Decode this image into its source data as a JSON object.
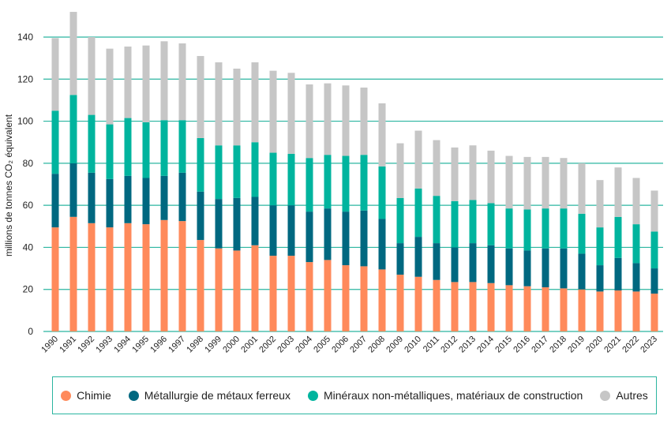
{
  "chart_data": {
    "type": "bar",
    "stacked": true,
    "ylabel": "millions de tonnes CO₂ équivalent",
    "ylim": [
      0,
      150
    ],
    "yticks": [
      0,
      20,
      40,
      60,
      80,
      100,
      120,
      140
    ],
    "grid": true,
    "legend_position": "bottom",
    "categories": [
      "1990",
      "1991",
      "1992",
      "1993",
      "1994",
      "1995",
      "1996",
      "1997",
      "1998",
      "1999",
      "2000",
      "2001",
      "2002",
      "2003",
      "2004",
      "2005",
      "2006",
      "2007",
      "2008",
      "2009",
      "2010",
      "2011",
      "2012",
      "2013",
      "2014",
      "2015",
      "2016",
      "2017",
      "2018",
      "2019",
      "2020",
      "2021",
      "2022",
      "2023"
    ],
    "series": [
      {
        "name": "Chimie",
        "color": "#FF8A5B",
        "values": [
          49.5,
          54.5,
          51.5,
          49.5,
          51.5,
          51,
          53,
          52.5,
          43.5,
          39.5,
          38.5,
          41,
          36,
          36,
          33,
          34,
          31.5,
          31,
          29.5,
          27,
          26,
          24.5,
          23.5,
          23.5,
          23,
          22,
          21.5,
          21,
          20.5,
          20,
          19,
          19.5,
          19,
          18
        ]
      },
      {
        "name": "Métallurgie de métaux ferreux",
        "color": "#006880",
        "values": [
          25.5,
          25.5,
          24,
          23,
          22.5,
          22,
          21,
          23,
          23,
          23.5,
          25,
          23,
          24,
          24,
          24,
          24.5,
          25.5,
          26.5,
          24,
          15,
          19,
          17.5,
          16.5,
          18.5,
          18,
          17.5,
          17,
          18.5,
          19,
          17,
          12.5,
          15.5,
          13.5,
          12
        ]
      },
      {
        "name": "Minéraux non-métalliques, matériaux de construction",
        "color": "#00B49E",
        "values": [
          30,
          32.5,
          27.5,
          26,
          27.5,
          26.5,
          26.5,
          25,
          25.5,
          25.5,
          25,
          26,
          25,
          24.5,
          25.5,
          25.5,
          26.5,
          26.5,
          25,
          21.5,
          23,
          22.5,
          22,
          20.5,
          20,
          19,
          19.5,
          19,
          19,
          19,
          18,
          19.5,
          18.5,
          17.5
        ]
      },
      {
        "name": "Autres",
        "color": "#C6C6C6",
        "values": [
          34.5,
          39.5,
          37,
          36,
          34,
          36.5,
          37.5,
          36.5,
          39,
          39.5,
          36.5,
          38,
          39,
          38.5,
          35,
          34,
          33.5,
          32,
          30,
          26,
          27.5,
          26.5,
          25.5,
          26,
          25,
          25,
          25,
          24.5,
          24,
          24,
          22.5,
          23.5,
          22,
          19.5
        ]
      }
    ]
  }
}
